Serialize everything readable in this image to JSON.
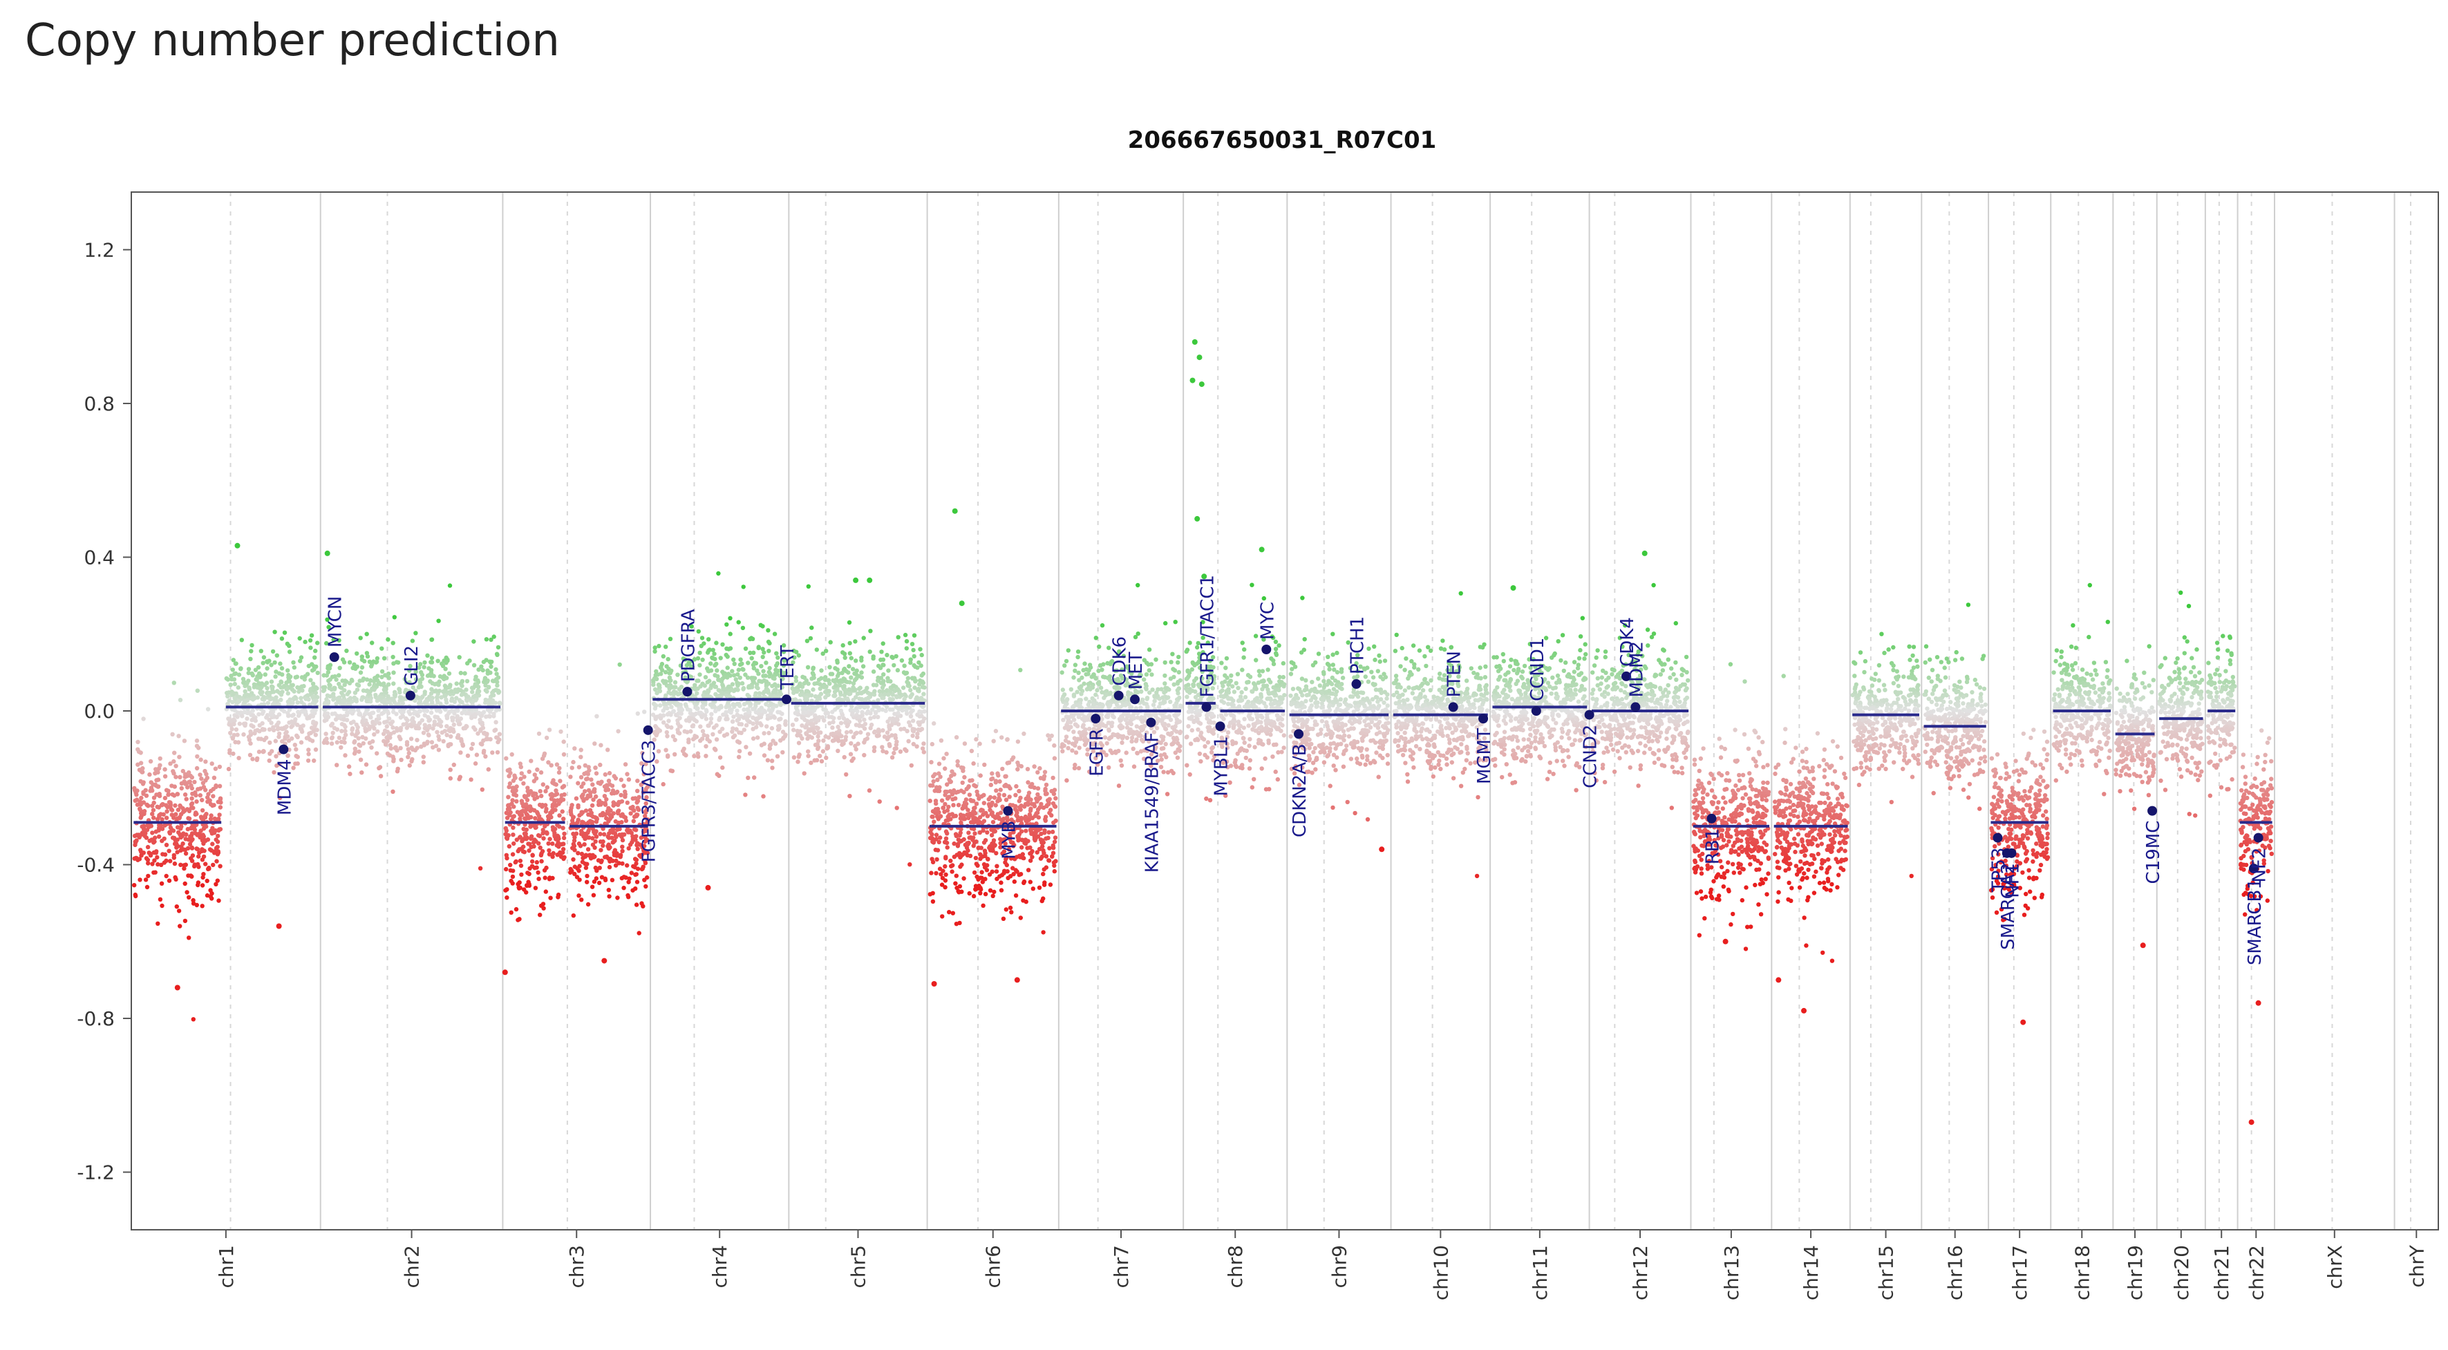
{
  "page": {
    "heading": "Copy number prediction"
  },
  "chart_data": {
    "type": "scatter",
    "title": "206667650031_R07C01",
    "xlabel": "",
    "ylabel": "",
    "ylim": [
      -1.35,
      1.35
    ],
    "yticks": [
      {
        "value": 1.2,
        "label": "1.2"
      },
      {
        "value": 0.8,
        "label": "0.8"
      },
      {
        "value": 0.4,
        "label": "0.4"
      },
      {
        "value": 0.0,
        "label": "0.0"
      },
      {
        "value": -0.4,
        "label": "-0.4"
      },
      {
        "value": -0.8,
        "label": "-0.8"
      },
      {
        "value": -1.2,
        "label": "-1.2"
      }
    ],
    "genome_length": 100,
    "chromosomes": [
      {
        "name": "chr1",
        "start": 0.0,
        "end": 8.2
      },
      {
        "name": "chr2",
        "start": 8.2,
        "end": 16.1
      },
      {
        "name": "chr3",
        "start": 16.1,
        "end": 22.5
      },
      {
        "name": "chr4",
        "start": 22.5,
        "end": 28.5
      },
      {
        "name": "chr5",
        "start": 28.5,
        "end": 34.5
      },
      {
        "name": "chr6",
        "start": 34.5,
        "end": 40.2
      },
      {
        "name": "chr7",
        "start": 40.2,
        "end": 45.6
      },
      {
        "name": "chr8",
        "start": 45.6,
        "end": 50.1
      },
      {
        "name": "chr9",
        "start": 50.1,
        "end": 54.6
      },
      {
        "name": "chr10",
        "start": 54.6,
        "end": 58.9
      },
      {
        "name": "chr11",
        "start": 58.9,
        "end": 63.2
      },
      {
        "name": "chr12",
        "start": 63.2,
        "end": 67.6
      },
      {
        "name": "chr13",
        "start": 67.6,
        "end": 71.1
      },
      {
        "name": "chr14",
        "start": 71.1,
        "end": 74.5
      },
      {
        "name": "chr15",
        "start": 74.5,
        "end": 77.6
      },
      {
        "name": "chr16",
        "start": 77.6,
        "end": 80.5
      },
      {
        "name": "chr17",
        "start": 80.5,
        "end": 83.2
      },
      {
        "name": "chr18",
        "start": 83.2,
        "end": 85.9
      },
      {
        "name": "chr19",
        "start": 85.9,
        "end": 87.8
      },
      {
        "name": "chr20",
        "start": 87.8,
        "end": 89.9
      },
      {
        "name": "chr21",
        "start": 89.9,
        "end": 91.3
      },
      {
        "name": "chr22",
        "start": 91.3,
        "end": 92.9
      },
      {
        "name": "chrX",
        "start": 92.9,
        "end": 98.1
      },
      {
        "name": "chrY",
        "start": 98.1,
        "end": 100.0
      }
    ],
    "centromeres": [
      4.3,
      11.1,
      18.9,
      24.4,
      30.1,
      36.7,
      41.9,
      47.1,
      51.7,
      56.4,
      60.7,
      64.3,
      68.6,
      72.3,
      75.4,
      78.8,
      81.6,
      84.4,
      86.8,
      88.7,
      90.5,
      91.9,
      95.4,
      98.8
    ],
    "segments": [
      {
        "start": 0.0,
        "end": 4.0,
        "mean": -0.29,
        "noise": 0.09
      },
      {
        "start": 4.0,
        "end": 8.2,
        "mean": 0.01,
        "noise": 0.07
      },
      {
        "start": 8.2,
        "end": 16.1,
        "mean": 0.01,
        "noise": 0.07
      },
      {
        "start": 16.1,
        "end": 18.9,
        "mean": -0.29,
        "noise": 0.09
      },
      {
        "start": 18.9,
        "end": 22.5,
        "mean": -0.3,
        "noise": 0.09
      },
      {
        "start": 22.5,
        "end": 28.5,
        "mean": 0.03,
        "noise": 0.07
      },
      {
        "start": 28.5,
        "end": 34.5,
        "mean": 0.02,
        "noise": 0.07
      },
      {
        "start": 34.5,
        "end": 40.2,
        "mean": -0.3,
        "noise": 0.09
      },
      {
        "start": 40.2,
        "end": 45.6,
        "mean": 0.0,
        "noise": 0.07
      },
      {
        "start": 45.6,
        "end": 47.1,
        "mean": 0.02,
        "noise": 0.07
      },
      {
        "start": 47.1,
        "end": 50.1,
        "mean": 0.0,
        "noise": 0.07
      },
      {
        "start": 50.1,
        "end": 54.6,
        "mean": -0.01,
        "noise": 0.07
      },
      {
        "start": 54.6,
        "end": 58.9,
        "mean": -0.01,
        "noise": 0.07
      },
      {
        "start": 58.9,
        "end": 63.2,
        "mean": 0.01,
        "noise": 0.07
      },
      {
        "start": 63.2,
        "end": 67.6,
        "mean": 0.0,
        "noise": 0.07
      },
      {
        "start": 67.6,
        "end": 71.1,
        "mean": -0.3,
        "noise": 0.09
      },
      {
        "start": 71.1,
        "end": 74.5,
        "mean": -0.3,
        "noise": 0.09
      },
      {
        "start": 74.5,
        "end": 77.6,
        "mean": -0.01,
        "noise": 0.07
      },
      {
        "start": 77.6,
        "end": 80.5,
        "mean": -0.04,
        "noise": 0.07
      },
      {
        "start": 80.5,
        "end": 83.2,
        "mean": -0.29,
        "noise": 0.09
      },
      {
        "start": 83.2,
        "end": 85.9,
        "mean": 0.0,
        "noise": 0.07
      },
      {
        "start": 85.9,
        "end": 87.8,
        "mean": -0.06,
        "noise": 0.07
      },
      {
        "start": 87.8,
        "end": 89.9,
        "mean": -0.02,
        "noise": 0.07
      },
      {
        "start": 89.9,
        "end": 91.3,
        "mean": 0.0,
        "noise": 0.07
      },
      {
        "start": 91.3,
        "end": 92.9,
        "mean": -0.29,
        "noise": 0.09
      }
    ],
    "outliers": [
      {
        "x": 4.6,
        "y": 0.43
      },
      {
        "x": 8.5,
        "y": 0.41
      },
      {
        "x": 6.4,
        "y": -0.56
      },
      {
        "x": 35.7,
        "y": 0.52
      },
      {
        "x": 36.0,
        "y": 0.28
      },
      {
        "x": 46.1,
        "y": 0.96
      },
      {
        "x": 46.3,
        "y": 0.92
      },
      {
        "x": 46.0,
        "y": 0.86
      },
      {
        "x": 46.4,
        "y": 0.85
      },
      {
        "x": 46.2,
        "y": 0.5
      },
      {
        "x": 46.5,
        "y": 0.35
      },
      {
        "x": 49.0,
        "y": 0.42
      },
      {
        "x": 32.0,
        "y": 0.34
      },
      {
        "x": 31.4,
        "y": 0.34
      },
      {
        "x": 25.0,
        "y": -0.46
      },
      {
        "x": 20.5,
        "y": -0.65
      },
      {
        "x": 16.2,
        "y": -0.68
      },
      {
        "x": 34.8,
        "y": -0.71
      },
      {
        "x": 65.6,
        "y": 0.41
      },
      {
        "x": 59.9,
        "y": 0.32
      },
      {
        "x": 72.5,
        "y": -0.78
      },
      {
        "x": 71.4,
        "y": -0.7
      },
      {
        "x": 82.0,
        "y": -0.81
      },
      {
        "x": 87.2,
        "y": -0.61
      },
      {
        "x": 92.2,
        "y": -0.76
      },
      {
        "x": 91.9,
        "y": -1.07
      },
      {
        "x": 2.0,
        "y": -0.72
      },
      {
        "x": 38.4,
        "y": -0.7
      },
      {
        "x": 69.1,
        "y": -0.6
      },
      {
        "x": 54.2,
        "y": -0.36
      }
    ],
    "genes": [
      {
        "name": "MDM4",
        "x": 6.6,
        "y": -0.1,
        "side": "below"
      },
      {
        "name": "MYCN",
        "x": 8.8,
        "y": 0.14,
        "side": "above"
      },
      {
        "name": "GLI2",
        "x": 12.1,
        "y": 0.04,
        "side": "above"
      },
      {
        "name": "FGFR3/TACC3",
        "x": 22.4,
        "y": -0.05,
        "side": "below"
      },
      {
        "name": "PDGFRA",
        "x": 24.1,
        "y": 0.05,
        "side": "above"
      },
      {
        "name": "TERT",
        "x": 28.4,
        "y": 0.03,
        "side": "above"
      },
      {
        "name": "MYB",
        "x": 38.0,
        "y": -0.26,
        "side": "below"
      },
      {
        "name": "EGFR",
        "x": 41.8,
        "y": -0.02,
        "side": "below"
      },
      {
        "name": "CDK6",
        "x": 42.8,
        "y": 0.04,
        "side": "above"
      },
      {
        "name": "MET",
        "x": 43.5,
        "y": 0.03,
        "side": "above"
      },
      {
        "name": "KIAA1549/BRAF",
        "x": 44.2,
        "y": -0.03,
        "side": "below"
      },
      {
        "name": "FGFR1/TACC1",
        "x": 46.6,
        "y": 0.01,
        "side": "above"
      },
      {
        "name": "MYBL1",
        "x": 47.2,
        "y": -0.04,
        "side": "below"
      },
      {
        "name": "MYC",
        "x": 49.2,
        "y": 0.16,
        "side": "above"
      },
      {
        "name": "CDKN2A/B",
        "x": 50.6,
        "y": -0.06,
        "side": "below"
      },
      {
        "name": "PTCH1",
        "x": 53.1,
        "y": 0.07,
        "side": "above"
      },
      {
        "name": "PTEN",
        "x": 57.3,
        "y": 0.01,
        "side": "above"
      },
      {
        "name": "MGMT",
        "x": 58.6,
        "y": -0.02,
        "side": "below"
      },
      {
        "name": "CCND1",
        "x": 60.9,
        "y": 0.0,
        "side": "above"
      },
      {
        "name": "CCND2",
        "x": 63.2,
        "y": -0.01,
        "side": "below"
      },
      {
        "name": "CDK4",
        "x": 64.8,
        "y": 0.09,
        "side": "above"
      },
      {
        "name": "MDM2",
        "x": 65.2,
        "y": 0.01,
        "side": "above"
      },
      {
        "name": "RB1",
        "x": 68.5,
        "y": -0.28,
        "side": "below"
      },
      {
        "name": "TP53",
        "x": 80.9,
        "y": -0.33,
        "side": "below"
      },
      {
        "name": "NF1",
        "x": 81.5,
        "y": -0.37,
        "side": "below"
      },
      {
        "name": "SMARCA2",
        "x": 81.3,
        "y": -0.37,
        "side": "below"
      },
      {
        "name": "C19MC",
        "x": 87.6,
        "y": -0.26,
        "side": "below"
      },
      {
        "name": "SMARCB1",
        "x": 92.0,
        "y": -0.41,
        "side": "below"
      },
      {
        "name": "NF2",
        "x": 92.2,
        "y": -0.33,
        "side": "below"
      }
    ]
  }
}
